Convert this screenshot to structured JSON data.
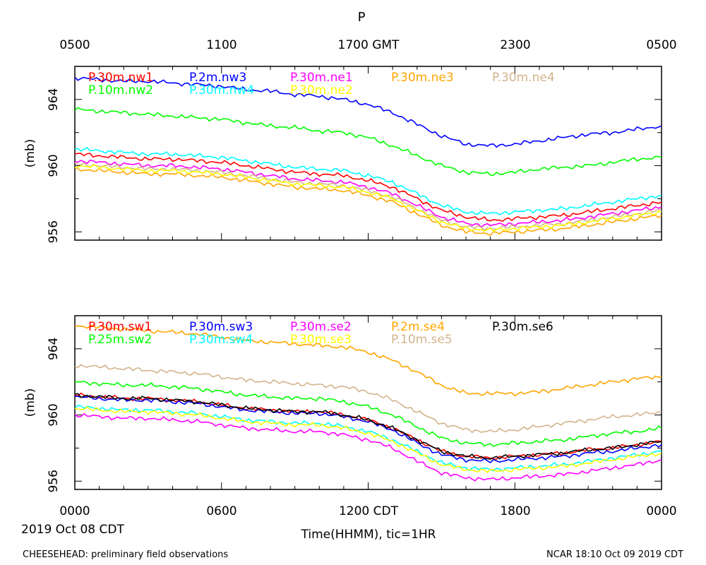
{
  "figure": {
    "title": "P",
    "top_time_labels": [
      "0500",
      "1100",
      "1700 GMT",
      "2300",
      "0500"
    ],
    "bottom_time_labels": [
      "0000",
      "0600",
      "1200 CDT",
      "1800",
      "0000"
    ],
    "date_label": "2019 Oct 08 CDT",
    "xlabel": "Time(HHMM), tic=1HR",
    "footer_left": "CHEESEHEAD: preliminary field observations",
    "footer_right": "NCAR 18:10 Oct 09 2019 CDT"
  },
  "chart_data": [
    {
      "type": "line",
      "panel": "top",
      "ylabel": "(mb)",
      "ylim": [
        955.5,
        966
      ],
      "yticks": [
        956,
        960,
        964
      ],
      "ytick_labels": [
        "956",
        "960",
        "964"
      ],
      "x_unit": "hours since 2019-10-08 00:00 CDT",
      "xlim": [
        0,
        24
      ],
      "x": [
        0,
        1,
        2,
        3,
        4,
        5,
        6,
        7,
        8,
        9,
        10,
        11,
        12,
        13,
        14,
        15,
        16,
        17,
        18,
        19,
        20,
        21,
        22,
        23,
        24
      ],
      "series": [
        {
          "name": "P.30m.nw1",
          "color": "#ff0000",
          "values": [
            960.7,
            960.6,
            960.5,
            960.4,
            960.4,
            960.3,
            960.2,
            960.0,
            959.8,
            959.6,
            959.5,
            959.4,
            959.1,
            958.7,
            958.0,
            957.3,
            956.9,
            956.7,
            956.8,
            956.9,
            957.0,
            957.2,
            957.4,
            957.6,
            957.8
          ]
        },
        {
          "name": "P.2m.nw3",
          "color": "#0000ff",
          "values": [
            965.3,
            965.2,
            965.1,
            965.1,
            965.0,
            964.9,
            964.8,
            964.6,
            964.5,
            964.3,
            964.2,
            964.0,
            963.7,
            963.2,
            962.5,
            961.8,
            961.3,
            961.2,
            961.3,
            961.5,
            961.7,
            961.9,
            962.0,
            962.2,
            962.4
          ]
        },
        {
          "name": "P.30m.ne1",
          "color": "#ff00ff",
          "values": [
            960.3,
            960.2,
            960.1,
            960.0,
            960.0,
            959.9,
            959.8,
            959.6,
            959.4,
            959.2,
            959.1,
            959.0,
            958.7,
            958.3,
            957.6,
            956.9,
            956.5,
            956.4,
            956.5,
            956.6,
            956.7,
            956.9,
            957.1,
            957.3,
            957.5
          ]
        },
        {
          "name": "P.30m.ne3",
          "color": "#ffa500",
          "values": [
            959.8,
            959.7,
            959.6,
            959.5,
            959.5,
            959.4,
            959.3,
            959.1,
            958.9,
            958.7,
            958.6,
            958.5,
            958.2,
            957.8,
            957.1,
            956.4,
            956.0,
            955.9,
            956.0,
            956.1,
            956.2,
            956.4,
            956.6,
            956.8,
            957.0
          ]
        },
        {
          "name": "P.30m.ne4",
          "color": "#d2b48c",
          "values": [
            960.1,
            960.0,
            959.9,
            959.8,
            959.8,
            959.7,
            959.6,
            959.4,
            959.2,
            959.0,
            958.9,
            958.8,
            958.5,
            958.1,
            957.4,
            956.7,
            956.3,
            956.2,
            956.3,
            956.4,
            956.5,
            956.7,
            956.9,
            957.1,
            957.3
          ]
        },
        {
          "name": "P.10m.nw2",
          "color": "#00ff00",
          "values": [
            963.4,
            963.3,
            963.2,
            963.1,
            963.0,
            962.9,
            962.8,
            962.6,
            962.4,
            962.3,
            962.1,
            962.0,
            961.7,
            961.2,
            960.6,
            960.0,
            959.6,
            959.5,
            959.6,
            959.8,
            959.9,
            960.0,
            960.2,
            960.4,
            960.5
          ]
        },
        {
          "name": "P.30m.nw4",
          "color": "#00ffff",
          "values": [
            961.0,
            960.9,
            960.8,
            960.7,
            960.7,
            960.6,
            960.5,
            960.3,
            960.1,
            959.9,
            959.8,
            959.7,
            959.4,
            959.0,
            958.3,
            957.6,
            957.2,
            957.1,
            957.2,
            957.3,
            957.4,
            957.6,
            957.8,
            958.0,
            958.2
          ]
        },
        {
          "name": "P.30m.ne2",
          "color": "#ffff00",
          "values": [
            960.0,
            959.9,
            959.8,
            959.7,
            959.7,
            959.6,
            959.5,
            959.3,
            959.1,
            958.9,
            958.8,
            958.7,
            958.4,
            958.0,
            957.3,
            956.6,
            956.2,
            956.1,
            956.2,
            956.3,
            956.4,
            956.6,
            956.8,
            957.0,
            957.2
          ]
        }
      ]
    },
    {
      "type": "line",
      "panel": "bottom",
      "ylabel": "(mb)",
      "ylim": [
        955.5,
        966
      ],
      "yticks": [
        956,
        960,
        964
      ],
      "ytick_labels": [
        "956",
        "960",
        "964"
      ],
      "x_unit": "hours since 2019-10-08 00:00 CDT",
      "xlim": [
        0,
        24
      ],
      "x": [
        0,
        1,
        2,
        3,
        4,
        5,
        6,
        7,
        8,
        9,
        10,
        11,
        12,
        13,
        14,
        15,
        16,
        17,
        18,
        19,
        20,
        21,
        22,
        23,
        24
      ],
      "series": [
        {
          "name": "P.30m.sw1",
          "color": "#ff0000",
          "values": [
            961.2,
            961.1,
            961.0,
            961.0,
            960.9,
            960.8,
            960.6,
            960.4,
            960.3,
            960.2,
            960.2,
            960.0,
            959.7,
            959.2,
            958.5,
            957.8,
            957.5,
            957.4,
            957.5,
            957.6,
            957.7,
            957.9,
            958.0,
            958.2,
            958.4
          ]
        },
        {
          "name": "P.30m.sw3",
          "color": "#0000ff",
          "values": [
            961.1,
            961.0,
            960.9,
            960.9,
            960.8,
            960.7,
            960.5,
            960.3,
            960.2,
            960.1,
            960.1,
            959.9,
            959.6,
            959.1,
            958.3,
            957.6,
            957.3,
            957.2,
            957.3,
            957.4,
            957.5,
            957.7,
            957.8,
            958.0,
            958.2
          ]
        },
        {
          "name": "P.30m.se2",
          "color": "#ff00ff",
          "values": [
            960.0,
            959.9,
            959.8,
            959.8,
            959.7,
            959.6,
            959.4,
            959.2,
            959.1,
            959.0,
            959.0,
            958.8,
            958.5,
            958.0,
            957.2,
            956.5,
            956.2,
            956.1,
            956.2,
            956.3,
            956.4,
            956.6,
            956.8,
            957.0,
            957.3
          ]
        },
        {
          "name": "P.2m.se4",
          "color": "#ffa500",
          "values": [
            965.4,
            965.3,
            965.2,
            965.1,
            965.0,
            964.9,
            964.7,
            964.5,
            964.4,
            964.3,
            964.2,
            964.1,
            963.8,
            963.3,
            962.6,
            961.8,
            961.3,
            961.3,
            961.3,
            961.4,
            961.6,
            961.8,
            962.0,
            962.2,
            962.3
          ]
        },
        {
          "name": "P.30m.se6",
          "color": "#000000",
          "values": [
            961.2,
            961.1,
            961.0,
            961.0,
            960.9,
            960.8,
            960.6,
            960.4,
            960.3,
            960.2,
            960.2,
            960.0,
            959.7,
            959.2,
            958.5,
            957.8,
            957.5,
            957.4,
            957.5,
            957.6,
            957.7,
            957.9,
            958.0,
            958.2,
            958.4
          ]
        },
        {
          "name": "P.25m.sw2",
          "color": "#00ff00",
          "values": [
            962.0,
            961.9,
            961.8,
            961.8,
            961.7,
            961.6,
            961.4,
            961.2,
            961.1,
            961.0,
            961.0,
            960.8,
            960.5,
            960.0,
            959.3,
            958.6,
            958.3,
            958.2,
            958.3,
            958.4,
            958.5,
            958.7,
            958.9,
            959.0,
            959.2
          ]
        },
        {
          "name": "P.30m.sw4",
          "color": "#00ffff",
          "values": [
            960.5,
            960.4,
            960.3,
            960.3,
            960.2,
            960.1,
            959.9,
            959.7,
            959.6,
            959.5,
            959.5,
            959.3,
            959.0,
            958.5,
            957.8,
            957.1,
            956.8,
            956.7,
            956.8,
            956.9,
            957.0,
            957.2,
            957.4,
            957.6,
            957.8
          ]
        },
        {
          "name": "P.30m.se3",
          "color": "#ffff00",
          "values": [
            960.4,
            960.3,
            960.2,
            960.2,
            960.1,
            960.0,
            959.8,
            959.6,
            959.5,
            959.4,
            959.4,
            959.2,
            958.9,
            958.4,
            957.7,
            957.0,
            956.7,
            956.6,
            956.7,
            956.8,
            956.9,
            957.1,
            957.3,
            957.5,
            957.7
          ]
        },
        {
          "name": "P.10m.se5",
          "color": "#d2b48c",
          "values": [
            963.0,
            962.9,
            962.8,
            962.7,
            962.6,
            962.5,
            962.3,
            962.1,
            962.0,
            961.9,
            961.8,
            961.7,
            961.4,
            960.9,
            960.2,
            959.5,
            959.1,
            959.0,
            959.1,
            959.3,
            959.5,
            959.7,
            959.9,
            960.0,
            960.2
          ]
        }
      ]
    }
  ]
}
